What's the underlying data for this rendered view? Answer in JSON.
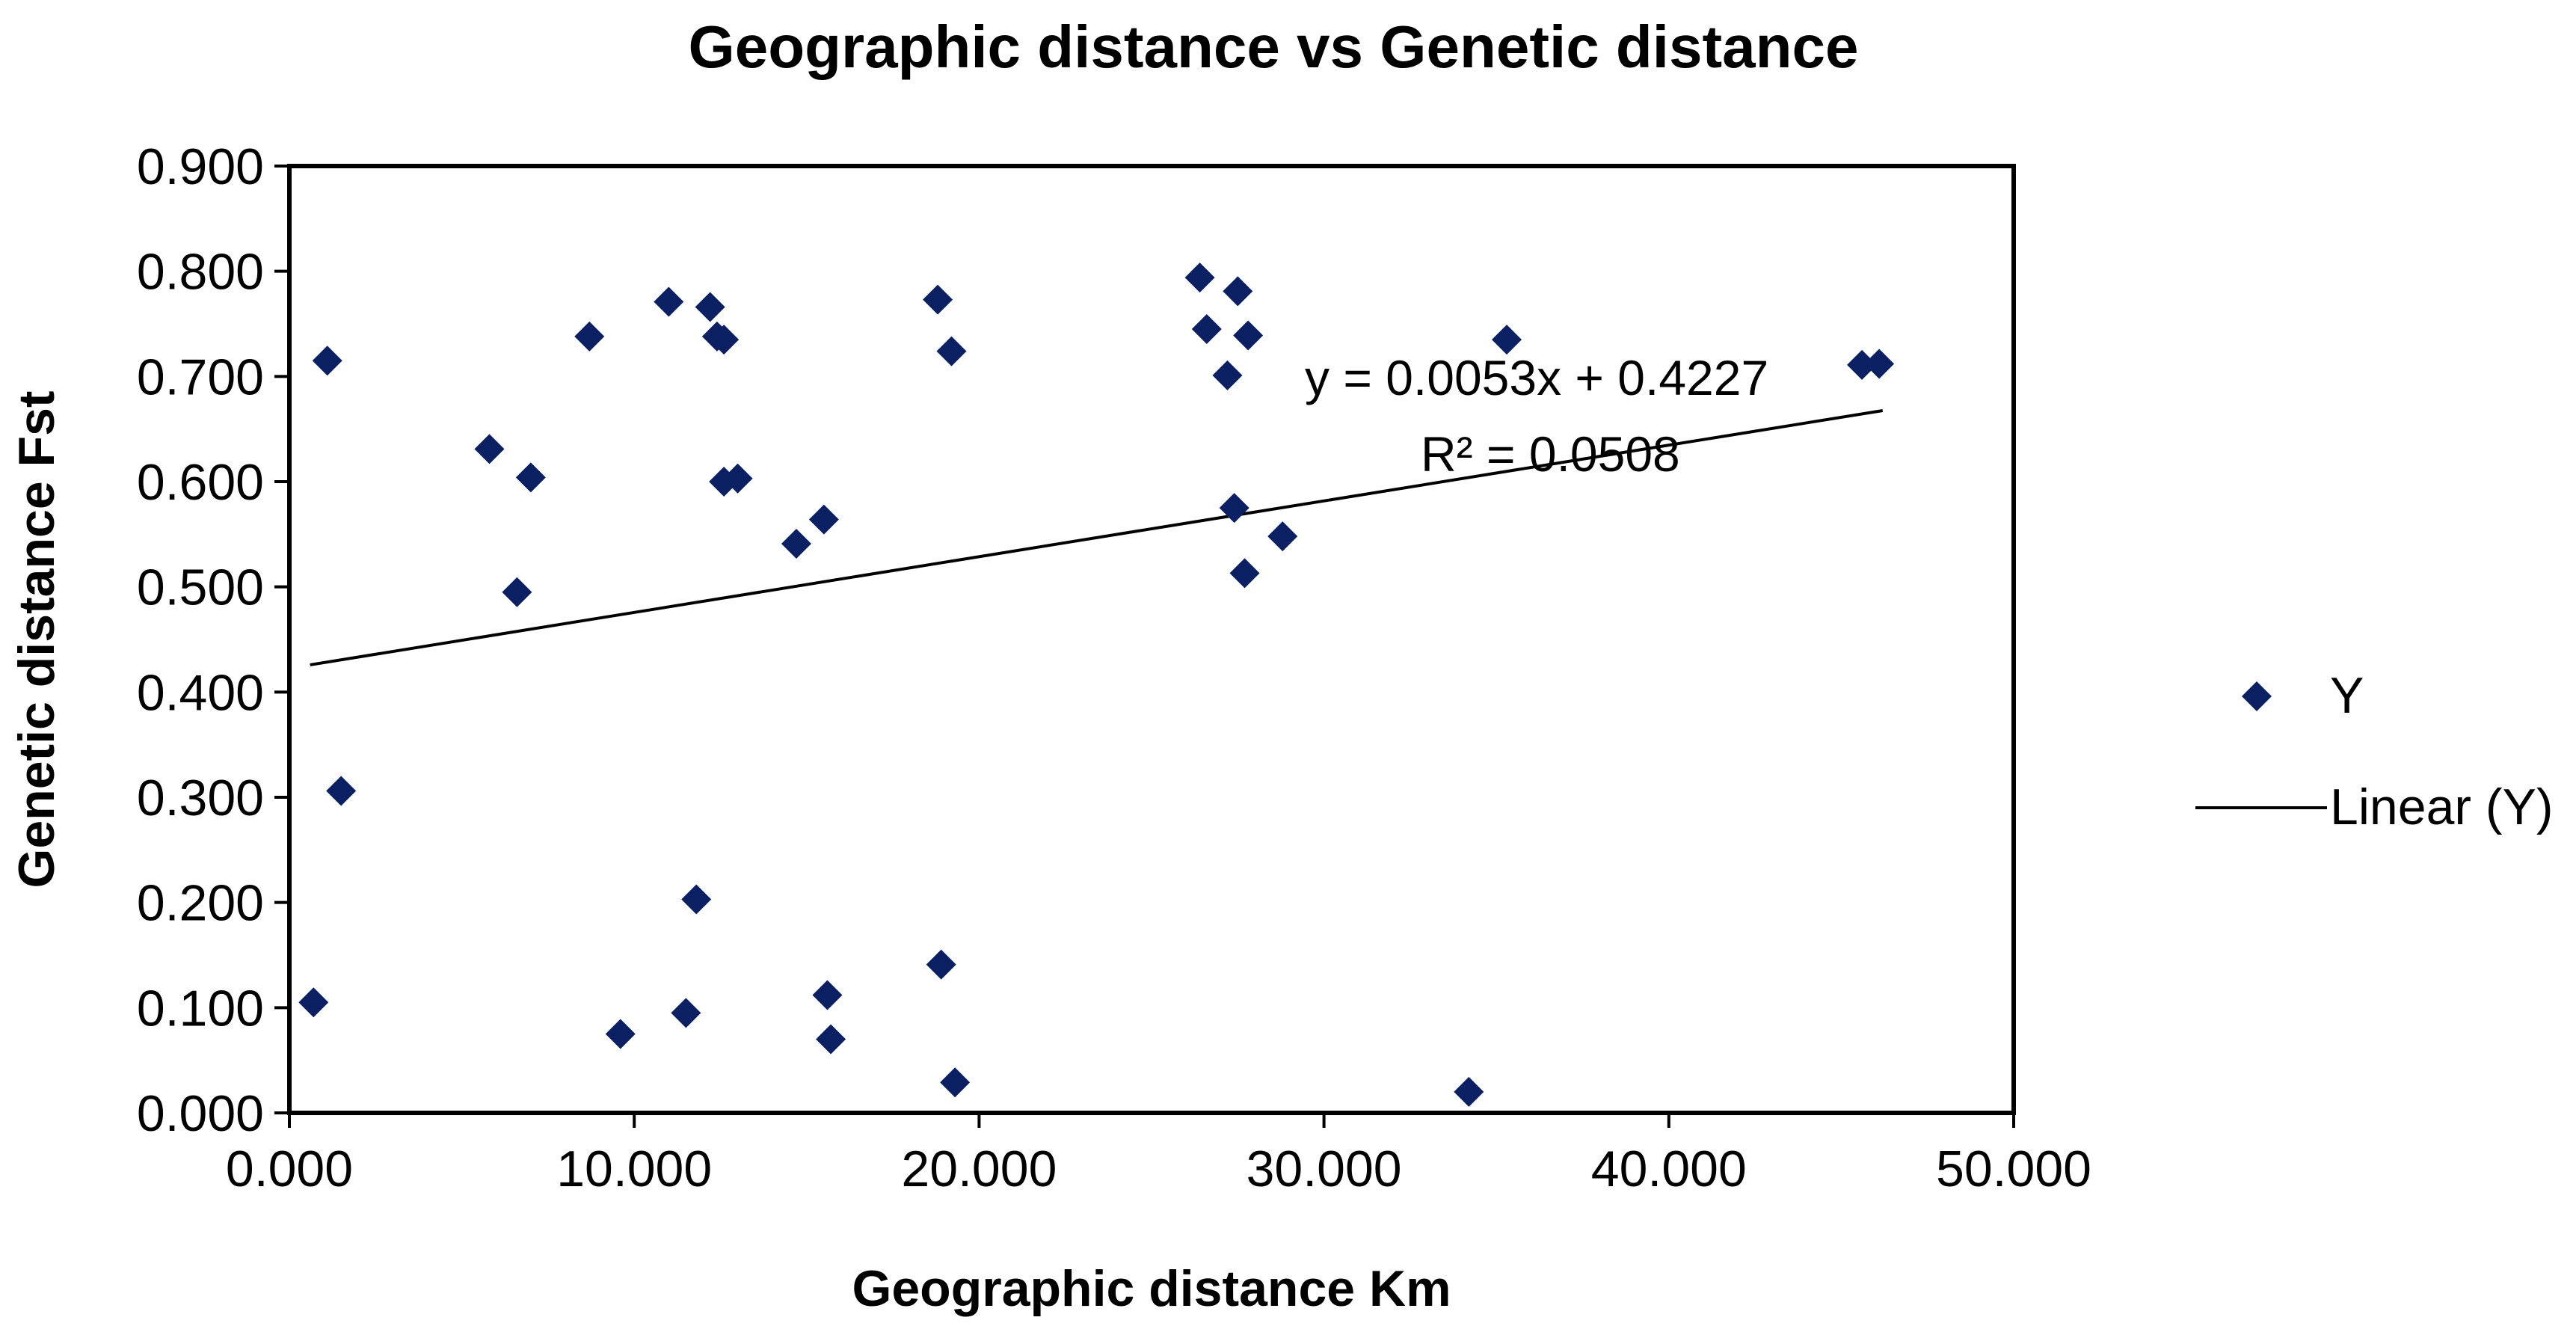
{
  "colors": {
    "marker": "#0b1f63",
    "trendline": "#000000",
    "plot_border": "#000000",
    "background": "#ffffff"
  },
  "chart_data": {
    "type": "scatter",
    "title": "Geographic distance vs Genetic distance",
    "xlabel": "Geographic distance Km",
    "ylabel": "Genetic distance Fst",
    "xlim": [
      0,
      50
    ],
    "ylim": [
      0,
      0.9
    ],
    "xticks": [
      0,
      10,
      20,
      30,
      40,
      50
    ],
    "yticks": [
      0,
      0.1,
      0.2,
      0.3,
      0.4,
      0.5,
      0.6,
      0.7,
      0.8,
      0.9
    ],
    "xtick_labels": [
      "0.000",
      "10.000",
      "20.000",
      "30.000",
      "40.000",
      "50.000"
    ],
    "ytick_labels": [
      "0.000",
      "0.100",
      "0.200",
      "0.300",
      "0.400",
      "0.500",
      "0.600",
      "0.700",
      "0.800",
      "0.900"
    ],
    "grid": false,
    "legend_position": "right",
    "marker_shape": "diamond",
    "series": [
      {
        "name": "Y",
        "points": [
          {
            "x": 0.7,
            "y": 0.105
          },
          {
            "x": 1.1,
            "y": 0.715
          },
          {
            "x": 1.5,
            "y": 0.306
          },
          {
            "x": 5.8,
            "y": 0.631
          },
          {
            "x": 6.6,
            "y": 0.495
          },
          {
            "x": 7.0,
            "y": 0.604
          },
          {
            "x": 8.7,
            "y": 0.738
          },
          {
            "x": 9.6,
            "y": 0.075
          },
          {
            "x": 11.0,
            "y": 0.771
          },
          {
            "x": 11.5,
            "y": 0.095
          },
          {
            "x": 11.8,
            "y": 0.203
          },
          {
            "x": 12.2,
            "y": 0.766
          },
          {
            "x": 12.4,
            "y": 0.738
          },
          {
            "x": 12.6,
            "y": 0.735
          },
          {
            "x": 12.6,
            "y": 0.6
          },
          {
            "x": 13.0,
            "y": 0.603
          },
          {
            "x": 14.7,
            "y": 0.541
          },
          {
            "x": 15.5,
            "y": 0.564
          },
          {
            "x": 15.6,
            "y": 0.112
          },
          {
            "x": 15.7,
            "y": 0.07
          },
          {
            "x": 18.8,
            "y": 0.773
          },
          {
            "x": 18.9,
            "y": 0.141
          },
          {
            "x": 19.2,
            "y": 0.724
          },
          {
            "x": 19.3,
            "y": 0.029
          },
          {
            "x": 26.4,
            "y": 0.794
          },
          {
            "x": 26.6,
            "y": 0.745
          },
          {
            "x": 27.2,
            "y": 0.701
          },
          {
            "x": 27.4,
            "y": 0.575
          },
          {
            "x": 27.5,
            "y": 0.781
          },
          {
            "x": 27.7,
            "y": 0.513
          },
          {
            "x": 27.8,
            "y": 0.739
          },
          {
            "x": 28.8,
            "y": 0.548
          },
          {
            "x": 34.2,
            "y": 0.02
          },
          {
            "x": 35.3,
            "y": 0.735
          },
          {
            "x": 45.6,
            "y": 0.711
          },
          {
            "x": 46.1,
            "y": 0.712
          }
        ]
      }
    ],
    "trendline": {
      "name": "Linear (Y)",
      "slope": 0.0053,
      "intercept": 0.4227,
      "x_range": [
        0.6,
        46.2
      ],
      "equation_label": "y = 0.0053x + 0.4227",
      "r2_label": "R² = 0.0508"
    }
  }
}
